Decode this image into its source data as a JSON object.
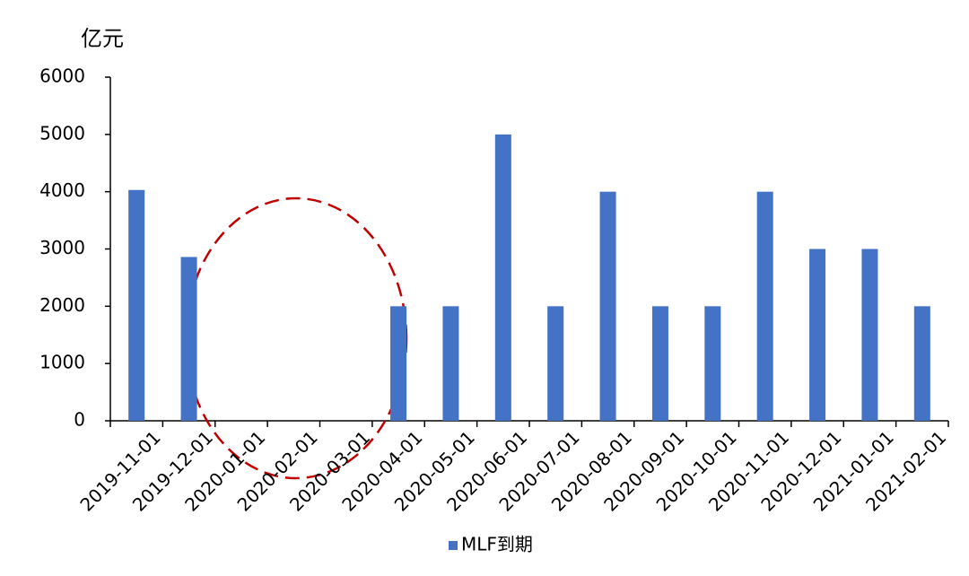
{
  "chart_data": {
    "type": "bar",
    "y_axis_label": "亿元",
    "categories": [
      "2019-11-01",
      "2019-12-01",
      "2020-01-01",
      "2020-02-01",
      "2020-03-01",
      "2020-04-01",
      "2020-05-01",
      "2020-06-01",
      "2020-07-01",
      "2020-08-01",
      "2020-09-01",
      "2020-10-01",
      "2020-11-01",
      "2020-12-01",
      "2021-01-01",
      "2021-02-01"
    ],
    "series": [
      {
        "name": "MLF到期",
        "color": "#4472c4",
        "values": [
          4030,
          2860,
          0,
          0,
          0,
          2000,
          2000,
          5000,
          2000,
          4000,
          2000,
          2000,
          4000,
          3000,
          3000,
          2000
        ]
      }
    ],
    "ylim": [
      0,
      6000
    ],
    "yticks": [
      0,
      1000,
      2000,
      3000,
      4000,
      5000,
      6000
    ],
    "grid": false,
    "legend": "bottom"
  }
}
